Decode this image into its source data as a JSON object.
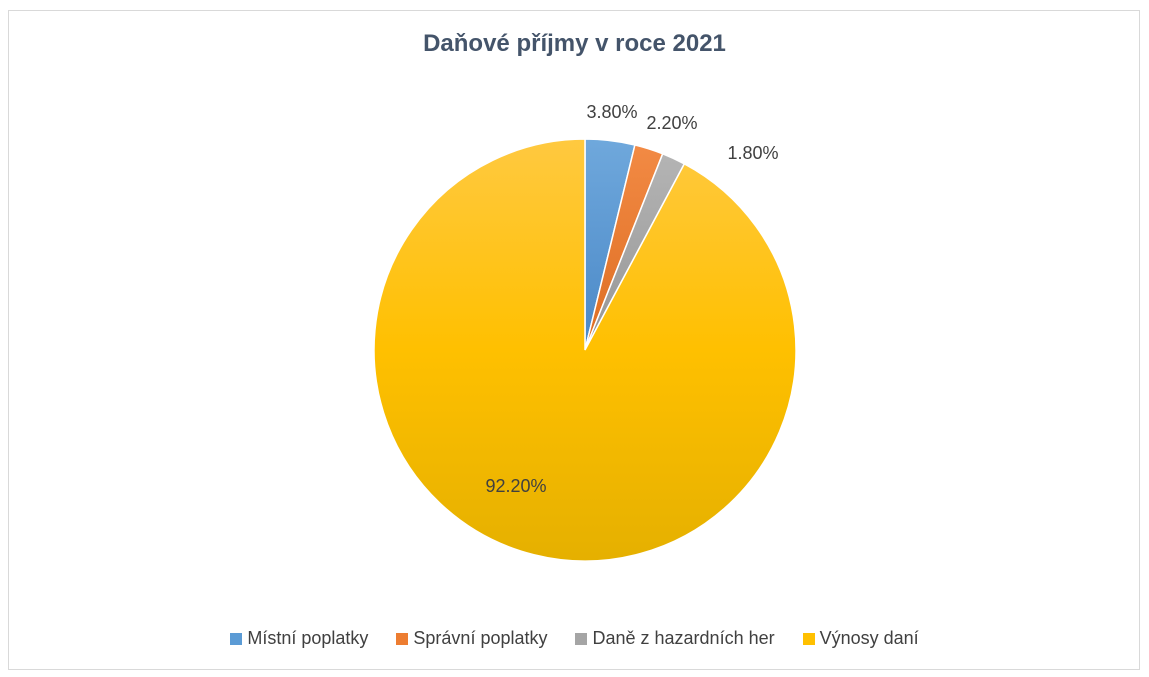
{
  "chart_data": {
    "type": "pie",
    "title": "Daňové příjmy v roce 2021",
    "categories": [
      "Místní poplatky",
      "Správní poplatky",
      "Daně z hazardních her",
      "Výnosy daní"
    ],
    "values": [
      3.8,
      2.2,
      1.8,
      92.2
    ],
    "labels": [
      "3.80%",
      "2.20%",
      "1.80%",
      "92.20%"
    ],
    "colors": [
      "#5b9bd5",
      "#ed7d31",
      "#a5a5a5",
      "#ffc000"
    ],
    "legend_position": "bottom"
  }
}
